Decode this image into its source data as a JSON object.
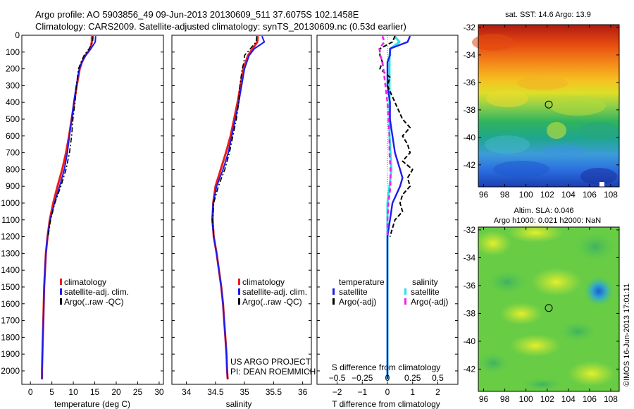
{
  "header": {
    "line1": "Argo profile: AO 5903856_49 09-Jun-2013 20130609_511 37.6075S 102.1458E",
    "line2": "Climatology: CARS2009. Satellite-adjusted climatology: synTS_20130609.nc (0.53d earlier)"
  },
  "credit": {
    "line1": "US ARGO PROJECT",
    "line2": "PI: DEAN ROEMMICH"
  },
  "vertical_stamp": "©IMOS 16-Jun-2013 17:01:11",
  "colors": {
    "climatology": "#ee1c1c",
    "satellite": "#1c1cee",
    "argo": "#000000",
    "sal_satellite": "#22e6e6",
    "sal_argo": "#ee22ee"
  },
  "chart_data": [
    {
      "type": "line",
      "panel": "temperature",
      "xlabel": "temperature (deg C)",
      "xlim": [
        -2,
        31
      ],
      "xticks": [
        0,
        5,
        10,
        15,
        20,
        25,
        30
      ],
      "ylim": [
        0,
        2080
      ],
      "yticks": [
        0,
        100,
        200,
        300,
        400,
        500,
        600,
        700,
        800,
        900,
        1000,
        1100,
        1200,
        1300,
        1400,
        1500,
        1600,
        1700,
        1800,
        1900,
        2000
      ],
      "legend": [
        "climatology",
        "satellite-adj. clim.",
        "Argo(..raw -QC)"
      ],
      "series": [
        {
          "name": "climatology",
          "depth": [
            5,
            40,
            80,
            120,
            160,
            200,
            300,
            400,
            500,
            600,
            700,
            800,
            900,
            1000,
            1100,
            1200,
            1300,
            1400,
            1500,
            1600,
            1700,
            1800,
            1900,
            2000,
            2050
          ],
          "values": [
            14.3,
            14.3,
            14.0,
            12.8,
            12.0,
            11.5,
            10.8,
            10.2,
            9.6,
            9.0,
            8.3,
            7.4,
            6.3,
            5.3,
            4.5,
            4.0,
            3.6,
            3.4,
            3.2,
            3.1,
            3.0,
            2.9,
            2.8,
            2.7,
            2.7
          ]
        },
        {
          "name": "satellite-adj. clim.",
          "depth": [
            5,
            40,
            80,
            120,
            160,
            200,
            300,
            400,
            500,
            600,
            700,
            800,
            900,
            1000,
            1100,
            1200,
            1300,
            1400,
            1500,
            1600,
            1700,
            1800,
            1900,
            2000,
            2050
          ],
          "values": [
            15.2,
            15.1,
            14.1,
            12.9,
            12.0,
            11.4,
            10.7,
            10.1,
            9.6,
            9.1,
            8.6,
            7.9,
            6.8,
            5.6,
            4.6,
            4.0,
            3.6,
            3.4,
            3.2,
            3.1,
            3.0,
            2.9,
            2.8,
            2.7,
            2.7
          ]
        },
        {
          "name": "Argo(..raw -QC)",
          "depth": [
            5,
            40,
            80,
            120,
            160,
            200,
            300,
            400,
            500,
            600,
            700,
            800,
            900,
            1000,
            1100,
            1200
          ],
          "values": [
            14.6,
            14.5,
            13.7,
            12.5,
            11.8,
            11.2,
            10.7,
            10.4,
            9.9,
            9.6,
            9.1,
            8.3,
            7.1,
            5.7,
            4.7,
            4.1
          ]
        }
      ]
    },
    {
      "type": "line",
      "panel": "salinity",
      "xlabel": "salinity",
      "xlim": [
        33.75,
        36.15
      ],
      "xticks": [
        34,
        34.5,
        35,
        35.5,
        36
      ],
      "xticklabels": [
        "34",
        "34.5",
        "35",
        "35.5",
        "36"
      ],
      "ylim": [
        0,
        2080
      ],
      "legend": [
        "climatology",
        "satellite-adj. clim.",
        "Argo(..raw -QC)"
      ],
      "series": [
        {
          "name": "climatology",
          "depth": [
            5,
            40,
            80,
            120,
            160,
            200,
            300,
            400,
            500,
            600,
            700,
            800,
            900,
            1000,
            1100,
            1200,
            1300,
            1400,
            1500,
            1600,
            1700,
            1800,
            1900,
            2000,
            2050
          ],
          "values": [
            35.23,
            35.22,
            35.14,
            35.06,
            35.02,
            34.98,
            34.93,
            34.88,
            34.82,
            34.76,
            34.68,
            34.59,
            34.5,
            34.46,
            34.45,
            34.47,
            34.52,
            34.56,
            34.6,
            34.63,
            34.65,
            34.67,
            34.69,
            34.7,
            34.71
          ]
        },
        {
          "name": "satellite-adj. clim.",
          "depth": [
            5,
            40,
            80,
            120,
            160,
            200,
            300,
            400,
            500,
            600,
            700,
            800,
            900,
            1000,
            1100,
            1200,
            1300,
            1400,
            1500,
            1600,
            1700,
            1800,
            1900,
            2000,
            2050
          ],
          "values": [
            35.3,
            35.34,
            35.17,
            35.08,
            35.04,
            35.0,
            34.95,
            34.9,
            34.84,
            34.78,
            34.72,
            34.63,
            34.52,
            34.46,
            34.44,
            34.47,
            34.52,
            34.56,
            34.6,
            34.63,
            34.65,
            34.67,
            34.69,
            34.7,
            34.71
          ]
        },
        {
          "name": "Argo(..raw -QC)",
          "depth": [
            5,
            40,
            80,
            120,
            160,
            200,
            300,
            400,
            500,
            600,
            700,
            800,
            900,
            1000,
            1100,
            1200
          ],
          "values": [
            35.21,
            35.2,
            35.1,
            35.0,
            34.99,
            34.96,
            34.92,
            34.9,
            34.86,
            34.8,
            34.74,
            34.66,
            34.55,
            34.47,
            34.45,
            34.47
          ]
        }
      ]
    },
    {
      "type": "line",
      "panel": "differences",
      "xlabel": "T difference from climatology",
      "xlabel2": "S difference from climatology",
      "xlim": [
        -2.8,
        2.8
      ],
      "xticks": [
        -2,
        -1,
        0,
        1,
        2
      ],
      "xticklabels": [
        "−2",
        "−1",
        "0",
        "1",
        "2"
      ],
      "sticks": [
        -0.5,
        -0.25,
        0,
        0.25,
        0.5
      ],
      "sticklabels": [
        "−0.5",
        "−0.25",
        "0",
        "0.25",
        "0.5"
      ],
      "ylim": [
        0,
        2080
      ],
      "legend_title_t": "temperature",
      "legend_title_s": "salinity",
      "legend": [
        "satellite",
        "Argo(-adj)",
        "satellite",
        "Argo(-adj)"
      ],
      "series": [
        {
          "name": "T satellite",
          "depth": [
            5,
            40,
            80,
            120,
            160,
            200,
            300,
            400,
            500,
            600,
            700,
            800,
            850,
            900,
            1000,
            1100,
            1200,
            1400,
            1600,
            1800,
            2000,
            2050
          ],
          "values": [
            0.9,
            0.8,
            0.1,
            0.1,
            0.0,
            0.0,
            0.0,
            0.1,
            0.1,
            0.2,
            0.3,
            0.5,
            0.6,
            0.5,
            0.2,
            0.1,
            0.0,
            0.0,
            0.0,
            0.0,
            0.0,
            0.0
          ]
        },
        {
          "name": "T Argo(-adj)",
          "depth": [
            5,
            40,
            80,
            120,
            160,
            200,
            250,
            300,
            400,
            500,
            550,
            600,
            650,
            700,
            750,
            800,
            850,
            900,
            950,
            1000,
            1050,
            1100,
            1150,
            1200
          ],
          "values": [
            0.3,
            0.2,
            -0.3,
            -0.3,
            -0.2,
            -0.3,
            0.1,
            0.0,
            0.3,
            0.6,
            0.9,
            0.6,
            0.8,
            0.9,
            0.6,
            1.0,
            0.8,
            0.9,
            0.6,
            0.5,
            0.6,
            0.3,
            0.2,
            0.1
          ]
        },
        {
          "name": "S satellite",
          "depth": [
            5,
            40,
            80,
            120,
            160,
            200,
            300,
            400,
            600,
            800,
            1000,
            1200,
            1400,
            1600,
            1800,
            2000,
            2050
          ],
          "values": [
            0.07,
            0.12,
            0.03,
            0.02,
            0.02,
            0.02,
            0.02,
            0.02,
            0.02,
            0.04,
            0.0,
            0.0,
            0.0,
            0.0,
            0.0,
            0.0,
            0.0
          ]
        },
        {
          "name": "S Argo(-adj)",
          "depth": [
            5,
            40,
            80,
            120,
            160,
            200,
            300,
            400,
            500,
            600,
            700,
            800,
            900,
            1000,
            1100,
            1200
          ],
          "values": [
            -0.05,
            -0.03,
            -0.08,
            -0.07,
            -0.05,
            -0.04,
            -0.02,
            0.0,
            0.01,
            0.02,
            0.02,
            0.03,
            0.03,
            0.01,
            0.0,
            0.0
          ]
        }
      ]
    },
    {
      "type": "heatmap",
      "panel": "sst",
      "title": "sat. SST: 14.6 Argo: 13.9",
      "xticks": [
        96,
        98,
        100,
        102,
        104,
        106,
        108
      ],
      "xticklabels": [
        "96",
        "98",
        "100",
        "102",
        "104",
        "106",
        "108"
      ],
      "yticks": [
        -32,
        -34,
        -36,
        -38,
        -40,
        -42
      ],
      "yticklabels": [
        "-32",
        "-34",
        "-36",
        "-38",
        "-40",
        "-42"
      ],
      "xlim": [
        95.5,
        108.8
      ],
      "ylim": [
        -43.6,
        -31.8
      ],
      "marker": {
        "lon": 102.15,
        "lat": -37.61
      }
    },
    {
      "type": "heatmap",
      "panel": "sla",
      "title": "Altim. SLA: 0.046",
      "title2": "Argo h1000: 0.021 h2000: NaN",
      "xticks": [
        96,
        98,
        100,
        102,
        104,
        106,
        108
      ],
      "xticklabels": [
        "96",
        "98",
        "100",
        "102",
        "104",
        "106",
        "108"
      ],
      "yticks": [
        -32,
        -34,
        -36,
        -38,
        -40,
        -42
      ],
      "yticklabels": [
        "-32",
        "-34",
        "-36",
        "-38",
        "-40",
        "-42"
      ],
      "xlim": [
        95.5,
        108.8
      ],
      "ylim": [
        -43.6,
        -31.8
      ],
      "marker": {
        "lon": 102.15,
        "lat": -37.61
      }
    }
  ]
}
